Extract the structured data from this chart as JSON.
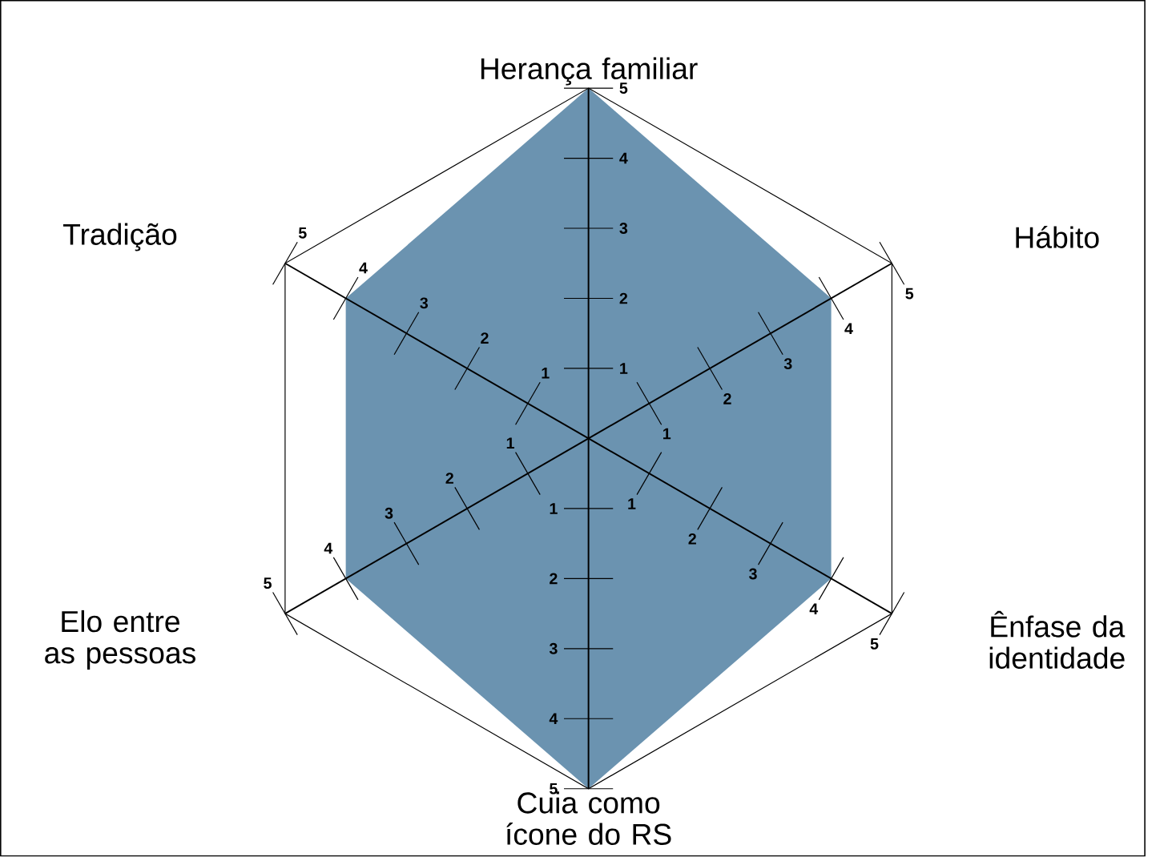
{
  "chart_data": {
    "type": "radar",
    "categories": [
      "Herança familiar",
      "Hábito",
      "Ênfase da identidade",
      "Cuia como ícone do RS",
      "Elo entre as pessoas",
      "Tradição"
    ],
    "series": [
      {
        "color": "#6b93b0",
        "values": [
          5,
          4,
          4,
          5,
          4,
          4
        ]
      }
    ],
    "ylim": [
      0,
      5
    ],
    "yticks": [
      {
        "value": 1,
        "label": "1"
      },
      {
        "value": 2,
        "label": "2"
      },
      {
        "value": 3,
        "label": "3"
      },
      {
        "value": 4,
        "label": "4"
      },
      {
        "value": 5,
        "label": "5"
      }
    ]
  }
}
